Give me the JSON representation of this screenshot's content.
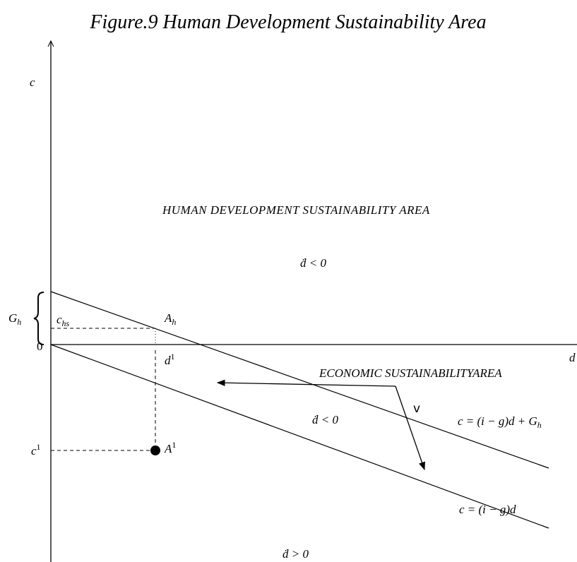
{
  "title": "Figure.9 Human Development Sustainability Area",
  "axes": {
    "y_label": "c",
    "x_label": "d",
    "origin": "0"
  },
  "labels": {
    "g_h": {
      "base": "G",
      "sub": "h"
    },
    "c_hs": {
      "base": "c",
      "sub": "hs"
    },
    "a_h": {
      "base": "A",
      "sub": "h"
    },
    "d_1": {
      "base": "d",
      "sup": "1"
    },
    "c_1": {
      "base": "c",
      "sup": "1"
    },
    "a_1": {
      "base": "A",
      "sup": "1"
    }
  },
  "regions": {
    "human": "HUMAN DEVELOPMENT SUSTAINABILITY AREA",
    "human_condition": "ḋ < 0",
    "economic": "ECONOMIC SUSTAINABILITYAREA",
    "arrow_label": "v",
    "between_condition": "ḋ < 0",
    "below_condition": "ḋ > 0"
  },
  "equations": {
    "upper": {
      "text": "c = (i − g)d + G",
      "sub": "h"
    },
    "lower": {
      "text": "c = (i − g)d"
    }
  }
}
